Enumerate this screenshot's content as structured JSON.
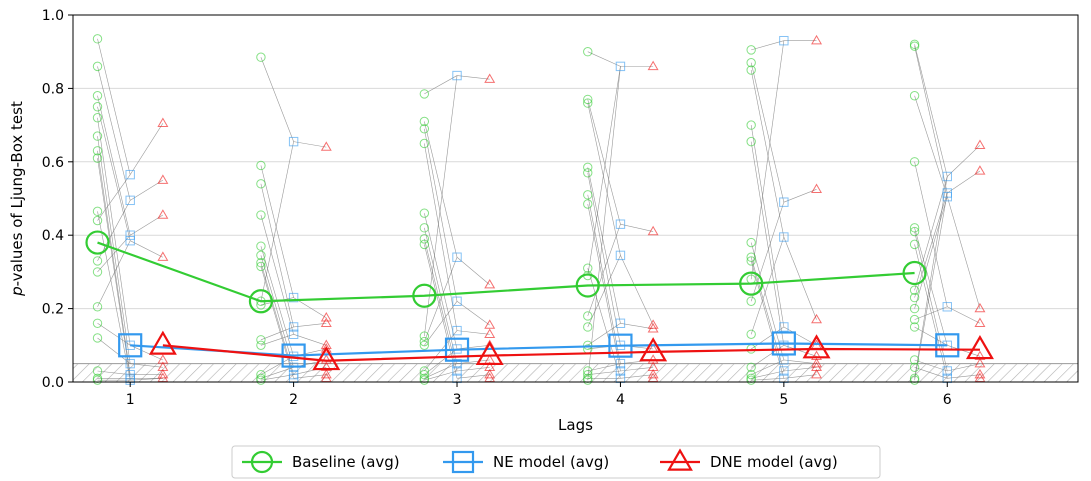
{
  "chart_data": {
    "type": "line",
    "title": "",
    "xlabel": "Lags",
    "ylabel": "p-values of Ljung-Box test",
    "ylabel_italic_prefix": "p",
    "ylabel_rest": "-values of Ljung-Box test",
    "x": [
      1,
      2,
      3,
      4,
      5,
      6
    ],
    "xlim": [
      0.65,
      6.8
    ],
    "ylim": [
      0.0,
      1.0
    ],
    "yticks": [
      "0.0",
      "0.2",
      "0.4",
      "0.6",
      "0.8",
      "1.0"
    ],
    "xticks": [
      "1",
      "2",
      "3",
      "4",
      "5",
      "6"
    ],
    "grid": "horizontal",
    "significance_band": 0.05,
    "legend_position": "bottom-center",
    "series": [
      {
        "name": "Baseline (avg)",
        "color": "#33cc33",
        "marker": "circle",
        "offset": -0.2,
        "values": [
          0.38,
          0.22,
          0.235,
          0.263,
          0.268,
          0.297
        ]
      },
      {
        "name": "NE model (avg)",
        "color": "#3399ee",
        "marker": "square",
        "offset": 0.0,
        "values": [
          0.1,
          0.072,
          0.088,
          0.099,
          0.105,
          0.1
        ]
      },
      {
        "name": "DNE model (avg)",
        "color": "#ee1111",
        "marker": "triangle",
        "offset": 0.2,
        "values": [
          0.1,
          0.058,
          0.072,
          0.082,
          0.09,
          0.088
        ]
      }
    ],
    "individual_runs": {
      "baseline": [
        [
          0.935,
          0.86,
          0.78,
          0.75,
          0.72,
          0.67,
          0.63,
          0.61,
          0.465,
          0.44,
          0.33,
          0.3,
          0.205,
          0.16,
          0.12,
          0.03,
          0.01,
          0.005
        ],
        [
          0.885,
          0.59,
          0.54,
          0.455,
          0.37,
          0.345,
          0.325,
          0.315,
          0.22,
          0.21,
          0.115,
          0.1,
          0.02,
          0.01,
          0.005
        ],
        [
          0.785,
          0.71,
          0.69,
          0.65,
          0.46,
          0.42,
          0.39,
          0.375,
          0.125,
          0.11,
          0.1,
          0.03,
          0.02,
          0.01,
          0.005
        ],
        [
          0.9,
          0.77,
          0.76,
          0.585,
          0.57,
          0.51,
          0.485,
          0.31,
          0.29,
          0.18,
          0.15,
          0.1,
          0.09,
          0.03,
          0.02,
          0.01,
          0.005
        ],
        [
          0.905,
          0.87,
          0.85,
          0.7,
          0.655,
          0.38,
          0.34,
          0.33,
          0.28,
          0.22,
          0.13,
          0.09,
          0.04,
          0.02,
          0.01,
          0.005
        ],
        [
          0.92,
          0.915,
          0.78,
          0.6,
          0.42,
          0.41,
          0.375,
          0.25,
          0.23,
          0.2,
          0.17,
          0.15,
          0.06,
          0.04,
          0.01,
          0.005
        ]
      ],
      "ne": [
        [
          0.565,
          0.495,
          0.4,
          0.385,
          0.1,
          0.05,
          0.02,
          0.01,
          0.005
        ],
        [
          0.655,
          0.23,
          0.15,
          0.13,
          0.07,
          0.04,
          0.02,
          0.01
        ],
        [
          0.835,
          0.34,
          0.22,
          0.14,
          0.09,
          0.05,
          0.03,
          0.01
        ],
        [
          0.86,
          0.43,
          0.345,
          0.16,
          0.1,
          0.05,
          0.03,
          0.01
        ],
        [
          0.93,
          0.49,
          0.395,
          0.15,
          0.1,
          0.06,
          0.03,
          0.01
        ],
        [
          0.56,
          0.515,
          0.505,
          0.205,
          0.1,
          0.03,
          0.01
        ]
      ],
      "dne": [
        [
          0.705,
          0.55,
          0.455,
          0.34,
          0.06,
          0.04,
          0.02,
          0.01
        ],
        [
          0.64,
          0.175,
          0.16,
          0.1,
          0.09,
          0.06,
          0.04,
          0.02,
          0.01
        ],
        [
          0.825,
          0.265,
          0.155,
          0.13,
          0.1,
          0.06,
          0.04,
          0.02,
          0.01
        ],
        [
          0.86,
          0.41,
          0.155,
          0.145,
          0.09,
          0.06,
          0.04,
          0.02,
          0.01
        ],
        [
          0.93,
          0.525,
          0.17,
          0.1,
          0.07,
          0.05,
          0.04,
          0.02
        ],
        [
          0.645,
          0.575,
          0.2,
          0.16,
          0.07,
          0.05,
          0.02,
          0.01
        ]
      ]
    }
  }
}
